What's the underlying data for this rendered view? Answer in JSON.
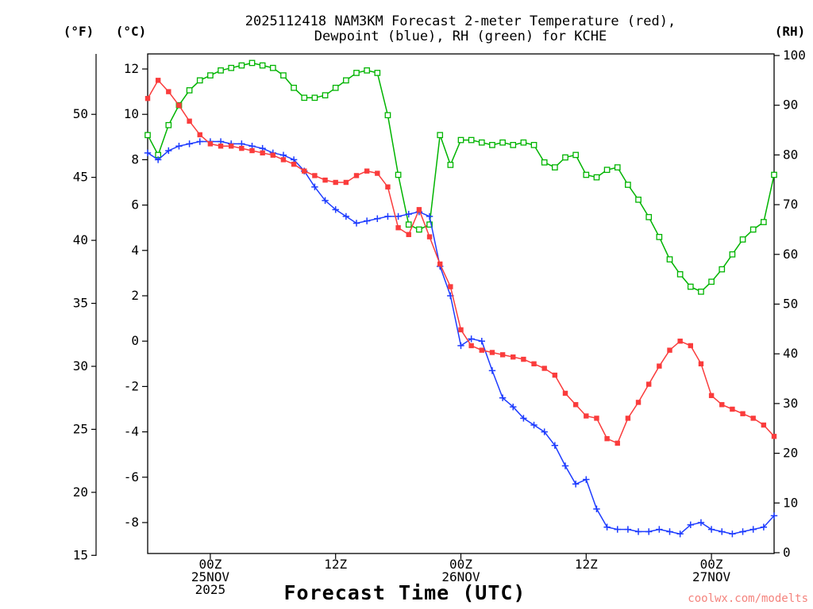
{
  "header": {
    "title_line1": "2025112418 NAM3KM Forecast 2-meter Temperature (red),",
    "title_line2": "Dewpoint (blue), RH (green) for KCHE"
  },
  "axes": {
    "f_unit": "(°F)",
    "c_unit": "(°C)",
    "rh_unit": "(RH)",
    "x_title": "Forecast Time (UTC)"
  },
  "footer": {
    "watermark": "coolwx.com/modelts",
    "watermark_color": "#f4837d"
  },
  "chart_data": {
    "type": "line",
    "title": "2025112418 NAM3KM Forecast 2-meter Temperature (red), Dewpoint (blue), RH (green) for KCHE",
    "model_init": "2025112418",
    "station": "KCHE",
    "x_axis_label": "Forecast Time (UTC)",
    "x_unit": "hours (hourly points, 0-60)",
    "x": [
      0,
      1,
      2,
      3,
      4,
      5,
      6,
      7,
      8,
      9,
      10,
      11,
      12,
      13,
      14,
      15,
      16,
      17,
      18,
      19,
      20,
      21,
      22,
      23,
      24,
      25,
      26,
      27,
      28,
      29,
      30,
      31,
      32,
      33,
      34,
      35,
      36,
      37,
      38,
      39,
      40,
      41,
      42,
      43,
      44,
      45,
      46,
      47,
      48,
      49,
      50,
      51,
      52,
      53,
      54,
      55,
      56,
      57,
      58,
      59,
      60
    ],
    "x_ticks": [
      {
        "hour": 6,
        "labels": [
          "00Z",
          "25NOV",
          "2025"
        ]
      },
      {
        "hour": 18,
        "labels": [
          "12Z"
        ]
      },
      {
        "hour": 30,
        "labels": [
          "00Z",
          "26NOV"
        ]
      },
      {
        "hour": 42,
        "labels": [
          "12Z"
        ]
      },
      {
        "hour": 54,
        "labels": [
          "00Z",
          "27NOV"
        ]
      }
    ],
    "left_axis": {
      "unit": "°C",
      "ticks": [
        12,
        10,
        8,
        6,
        4,
        2,
        0,
        -2,
        -4,
        -6,
        -8
      ],
      "range_approx": [
        -9.5,
        12.7
      ],
      "grid": false
    },
    "outer_left_axis": {
      "unit": "°F",
      "ticks": [
        50,
        45,
        40,
        35,
        30,
        25,
        20,
        15
      ]
    },
    "right_axis": {
      "unit": "RH %",
      "ticks": [
        100,
        90,
        80,
        70,
        60,
        50,
        40,
        30,
        20,
        10,
        0
      ],
      "range": [
        0,
        100
      ]
    },
    "legend_position": "in-title",
    "series": [
      {
        "name": "Relative Humidity",
        "unit": "%",
        "axis": "RH",
        "color": "#00b400",
        "marker": "open-square",
        "values": [
          84,
          80,
          86,
          90,
          93,
          95,
          96,
          97,
          97.5,
          98,
          98.5,
          98,
          97.5,
          96,
          93.5,
          91.5,
          91.5,
          92,
          93.5,
          95,
          96.5,
          97,
          96.5,
          88,
          76,
          66,
          65,
          66,
          84,
          78,
          83,
          83,
          82.5,
          82,
          82.5,
          82,
          82.5,
          82,
          78.5,
          77.5,
          79.5,
          80,
          76,
          75.5,
          77,
          77.5,
          74,
          71,
          67.5,
          63.5,
          59,
          56,
          53.5,
          52.5,
          54.5,
          57,
          60,
          63,
          65,
          66.5,
          76
        ]
      },
      {
        "name": "Dewpoint",
        "unit": "°C",
        "axis": "C",
        "color": "#1e3cff",
        "marker": "plus",
        "values": [
          8.3,
          8.0,
          8.4,
          8.6,
          8.7,
          8.8,
          8.8,
          8.8,
          8.7,
          8.7,
          8.6,
          8.5,
          8.3,
          8.2,
          8.0,
          7.5,
          6.8,
          6.2,
          5.8,
          5.5,
          5.2,
          5.3,
          5.4,
          5.5,
          5.5,
          5.6,
          5.7,
          5.5,
          3.3,
          2.0,
          -0.2,
          0.1,
          0.0,
          -1.3,
          -2.5,
          -2.9,
          -3.4,
          -3.7,
          -4.0,
          -4.6,
          -5.5,
          -6.3,
          -6.1,
          -7.4,
          -8.2,
          -8.3,
          -8.3,
          -8.4,
          -8.4,
          -8.3,
          -8.4,
          -8.5,
          -8.1,
          -8.0,
          -8.3,
          -8.4,
          -8.5,
          -8.4,
          -8.3,
          -8.2,
          -7.7
        ]
      },
      {
        "name": "2-meter Temperature",
        "unit": "°C",
        "axis": "C",
        "color": "#fa3c3c",
        "marker": "filled-square",
        "values": [
          10.7,
          11.5,
          11.0,
          10.4,
          9.7,
          9.1,
          8.7,
          8.6,
          8.6,
          8.5,
          8.4,
          8.3,
          8.2,
          8.0,
          7.8,
          7.5,
          7.3,
          7.1,
          7.0,
          7.0,
          7.3,
          7.5,
          7.4,
          6.8,
          5.0,
          4.7,
          5.8,
          4.6,
          3.4,
          2.4,
          0.5,
          -0.2,
          -0.4,
          -0.5,
          -0.6,
          -0.7,
          -0.8,
          -1.0,
          -1.2,
          -1.5,
          -2.3,
          -2.8,
          -3.3,
          -3.4,
          -4.3,
          -4.5,
          -3.4,
          -2.7,
          -1.9,
          -1.1,
          -0.4,
          0.0,
          -0.2,
          -1.0,
          -2.4,
          -2.8,
          -3.0,
          -3.2,
          -3.4,
          -3.7,
          -4.2
        ]
      }
    ]
  }
}
